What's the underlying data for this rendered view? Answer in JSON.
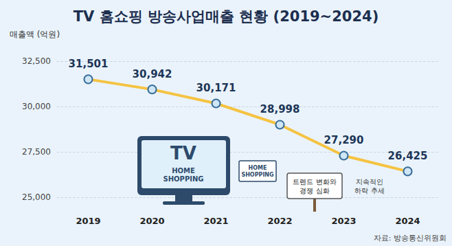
{
  "chart_data": {
    "type": "line",
    "title": "TV 홈쇼핑 방송사업매출 현황 (2019~2024)",
    "y_label": "매출액 (억원)",
    "categories": [
      "2019",
      "2020",
      "2021",
      "2022",
      "2023",
      "2024"
    ],
    "values": [
      31501,
      30942,
      30171,
      28998,
      27290,
      26425
    ],
    "value_labels": [
      "31,501",
      "30,942",
      "30,171",
      "28,998",
      "27,290",
      "26,425"
    ],
    "color": "#f5c342",
    "marker": "circle",
    "data_labels": true,
    "ylim": [
      25000,
      32500
    ],
    "yticks": [
      {
        "value": 25000,
        "label": "25,000"
      },
      {
        "value": 27500,
        "label": "27,500"
      },
      {
        "value": 30000,
        "label": "30,000"
      },
      {
        "value": 32500,
        "label": "32,500"
      }
    ],
    "grid": true,
    "annotations": [
      "TV",
      "HOME\nSHOPPING",
      "HOME\nSHOPPING",
      "트렌드 변화와\n경쟁 심화",
      "지속적인\n하락 추세"
    ],
    "source": "자료: 방송통신위원회"
  }
}
